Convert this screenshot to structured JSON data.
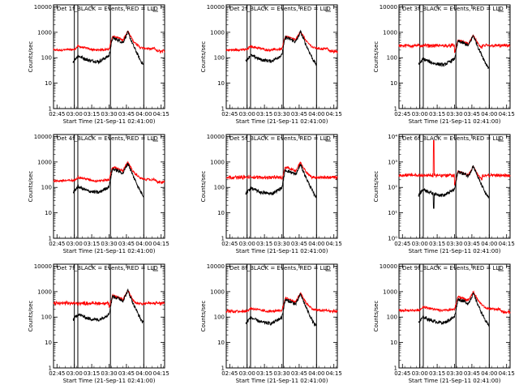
{
  "chart_data": {
    "type": "line",
    "layout": "3x3 grid of panels",
    "y_scale": "log",
    "x_ticks": [
      "02:45",
      "03:00",
      "03:15",
      "03:30",
      "03:45",
      "04:00",
      "04:15"
    ],
    "x_tick_hours": [
      2.75,
      3.0,
      3.25,
      3.5,
      3.75,
      4.0,
      4.25
    ],
    "x_range_hours": [
      2.7,
      4.3
    ],
    "xlabel": "Start Time (21-Sep-11 02:41:00)",
    "ylabel": "Counts/sec",
    "ylim": [
      1,
      12000
    ],
    "y_ticks_decimal": [
      "1",
      "10",
      "100",
      "1000",
      "10000"
    ],
    "y_ticks_power": [
      "10⁰",
      "10¹",
      "10²",
      "10³",
      "10⁴"
    ],
    "attenuator_lines_hours": [
      3.0,
      3.05,
      3.52,
      4.0
    ],
    "series_colors": {
      "events": "#000000",
      "lld": "#ff0000"
    },
    "series_keyframes": {
      "note": "approximate readings, hours vs counts/sec",
      "events": [
        [
          2.98,
          70
        ],
        [
          3.05,
          120
        ],
        [
          3.2,
          80
        ],
        [
          3.35,
          70
        ],
        [
          3.5,
          120
        ],
        [
          3.55,
          600
        ],
        [
          3.63,
          500
        ],
        [
          3.7,
          400
        ],
        [
          3.77,
          1000
        ],
        [
          3.85,
          300
        ],
        [
          3.95,
          80
        ],
        [
          4.0,
          50
        ]
      ],
      "lld": [
        [
          2.7,
          200
        ],
        [
          3.0,
          210
        ],
        [
          3.05,
          280
        ],
        [
          3.3,
          200
        ],
        [
          3.5,
          220
        ],
        [
          3.55,
          700
        ],
        [
          3.63,
          600
        ],
        [
          3.7,
          500
        ],
        [
          3.77,
          1100
        ],
        [
          3.85,
          450
        ],
        [
          3.95,
          250
        ],
        [
          4.1,
          220
        ],
        [
          4.15,
          240
        ],
        [
          4.2,
          170
        ],
        [
          4.3,
          160
        ]
      ]
    },
    "panels": [
      {
        "title": "Det  1f_BLACK = Events, RED = LLD",
        "y_tick_style": "decimal",
        "events_scale": 1.0,
        "lld_scale": 1.0,
        "lld_low_floor": 180
      },
      {
        "title": "Det  2f_BLACK = Events, RED = LLD",
        "y_tick_style": "decimal",
        "events_scale": 1.05,
        "lld_scale": 1.0,
        "lld_low_floor": 180
      },
      {
        "title": "Det  3f_BLACK = Events, RED = LLD",
        "y_tick_style": "decimal",
        "events_scale": 0.75,
        "lld_scale": 0.7,
        "lld_low_floor": 300
      },
      {
        "title": "Det  4f_BLACK = Events, RED = LLD",
        "y_tick_style": "decimal",
        "events_scale": 0.9,
        "lld_scale": 0.9,
        "lld_low_floor": 160
      },
      {
        "title": "Det  5f_BLACK = Events, RED = LLD",
        "y_tick_style": "decimal",
        "events_scale": 0.8,
        "lld_scale": 0.9,
        "lld_low_floor": 250
      },
      {
        "title": "Det  6f_BLACK = Events, RED = LLD",
        "y_tick_style": "power",
        "events_scale": 0.7,
        "lld_scale": 0.6,
        "lld_low_floor": 300,
        "spike": {
          "x": 3.2,
          "events_low": 15,
          "lld_high": 7000
        }
      },
      {
        "title": "Det  7f_BLACK = Events, RED = LLD",
        "y_tick_style": "decimal",
        "events_scale": 1.1,
        "lld_scale": 1.0,
        "lld_low_floor": 350
      },
      {
        "title": "Det  8f_BLACK = Events, RED = LLD",
        "y_tick_style": "decimal",
        "events_scale": 0.8,
        "lld_scale": 0.8,
        "lld_low_floor": 170
      },
      {
        "title": "Det  9f_BLACK = Events, RED = LLD",
        "y_tick_style": "decimal",
        "events_scale": 0.85,
        "lld_scale": 0.9,
        "lld_low_floor": 160
      }
    ]
  }
}
